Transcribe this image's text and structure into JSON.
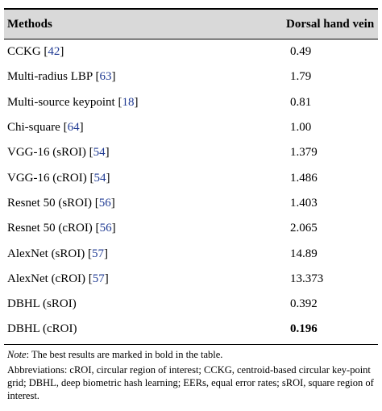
{
  "table": {
    "headers": [
      "Methods",
      "Dorsal hand vein"
    ],
    "rows": [
      {
        "method": "CCKG [",
        "ref": "42",
        "close": "]",
        "value": "0.49",
        "bold": false
      },
      {
        "method": "Multi-radius LBP [",
        "ref": "63",
        "close": "]",
        "value": "1.79",
        "bold": false
      },
      {
        "method": "Multi-source keypoint [",
        "ref": "18",
        "close": "]",
        "value": "0.81",
        "bold": false
      },
      {
        "method": "Chi-square [",
        "ref": "64",
        "close": "]",
        "value": "1.00",
        "bold": false
      },
      {
        "method": "VGG-16 (sROI) [",
        "ref": "54",
        "close": "]",
        "value": "1.379",
        "bold": false
      },
      {
        "method": "VGG-16 (cROI) [",
        "ref": "54",
        "close": "]",
        "value": "1.486",
        "bold": false
      },
      {
        "method": "Resnet 50 (sROI) [",
        "ref": "56",
        "close": "]",
        "value": "1.403",
        "bold": false
      },
      {
        "method": "Resnet 50 (cROI) [",
        "ref": "56",
        "close": "]",
        "value": "2.065",
        "bold": false
      },
      {
        "method": "AlexNet (sROI) [",
        "ref": "57",
        "close": "]",
        "value": "14.89",
        "bold": false
      },
      {
        "method": "AlexNet (cROI) [",
        "ref": "57",
        "close": "]",
        "value": "13.373",
        "bold": false
      },
      {
        "method": "DBHL (sROI)",
        "ref": "",
        "close": "",
        "value": "0.392",
        "bold": false
      },
      {
        "method": "DBHL (cROI)",
        "ref": "",
        "close": "",
        "value": "0.196",
        "bold": true
      }
    ]
  },
  "notes": {
    "note_label": "Note",
    "note_text": ": The best results are marked in bold in the table.",
    "abbreviations": "Abbreviations: cROI, circular region of interest; CCKG, centroid-based circular key-point grid; DBHL, deep biometric hash learning; EERs, equal error rates; sROI, square region of interest."
  }
}
